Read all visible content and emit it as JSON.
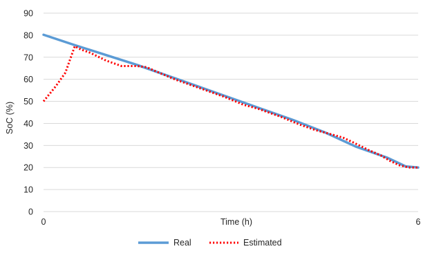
{
  "chart_data": {
    "type": "line",
    "title": "",
    "xlabel": "Time (h)",
    "ylabel": "SoC (%)",
    "xlim": [
      0,
      6
    ],
    "ylim": [
      0,
      90
    ],
    "x_ticks": [
      0,
      6
    ],
    "x_tick_labels": [
      "0",
      "6"
    ],
    "y_ticks": [
      0,
      10,
      20,
      30,
      40,
      50,
      60,
      70,
      80,
      90
    ],
    "y_tick_labels": [
      "0",
      "10",
      "20",
      "30",
      "40",
      "50",
      "60",
      "70",
      "80",
      "90"
    ],
    "grid": "horizontal",
    "legend_position": "bottom",
    "series": [
      {
        "name": "Real",
        "color": "#5b9bd5",
        "style": "solid",
        "x": [
          0,
          0.5,
          1.0,
          1.5,
          2.0,
          2.5,
          3.0,
          3.5,
          4.0,
          4.5,
          5.0,
          5.5,
          5.8,
          6.0
        ],
        "y": [
          80.2,
          75.5,
          71.0,
          66.5,
          61.5,
          56.5,
          51.5,
          46.5,
          41.5,
          36.0,
          29.5,
          24.5,
          20.5,
          20.0
        ]
      },
      {
        "name": "Estimated",
        "color": "#ff0000",
        "style": "dotted",
        "x": [
          0,
          0.1,
          0.2,
          0.35,
          0.5,
          0.6,
          0.75,
          1.0,
          1.25,
          1.5,
          1.65,
          1.85,
          2.1,
          2.3,
          2.6,
          2.9,
          3.2,
          3.45,
          3.8,
          4.1,
          4.35,
          4.55,
          4.8,
          4.95,
          5.2,
          5.4,
          5.55,
          5.7,
          5.85,
          6.0
        ],
        "y": [
          50.0,
          53.5,
          57.0,
          63.0,
          75.0,
          73.5,
          72.0,
          68.5,
          66.0,
          66.0,
          65.5,
          63.0,
          60.0,
          58.0,
          55.0,
          52.0,
          48.5,
          46.5,
          43.0,
          39.5,
          37.0,
          35.5,
          33.5,
          31.5,
          28.0,
          25.5,
          23.0,
          21.0,
          20.0,
          20.0
        ]
      }
    ]
  }
}
